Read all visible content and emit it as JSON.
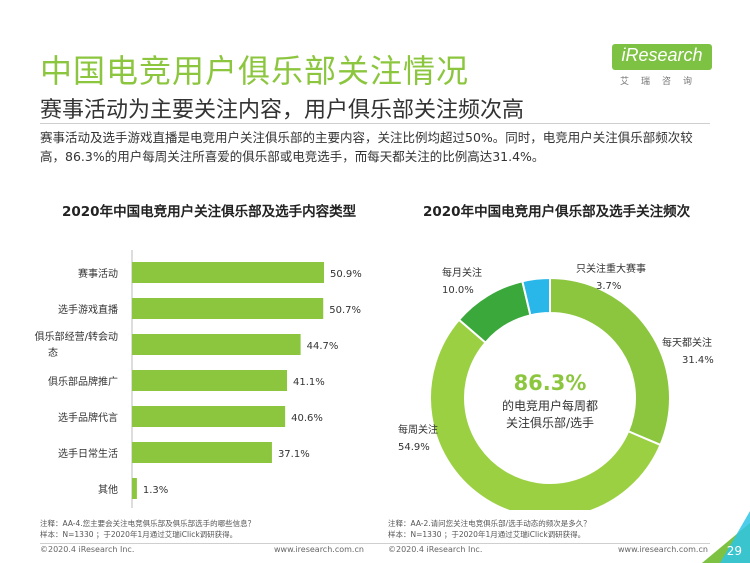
{
  "header": {
    "title": "中国电竞用户俱乐部关注情况",
    "subtitle": "赛事活动为主要关注内容，用户俱乐部关注频次高",
    "description": "赛事活动及选手游戏直播是电竞用户关注俱乐部的主要内容，关注比例均超过50%。同时，电竞用户关注俱乐部频次较高，86.3%的用户每周关注所喜爱的俱乐部或电竞选手，而每天都关注的比例高达31.4%。"
  },
  "logo": {
    "text": "iResearch",
    "cn": "艾瑞咨询"
  },
  "colors": {
    "accent": "#8cc63f",
    "bar": "#8cc63f",
    "pie_daily": "#8cc63f",
    "pie_weekly": "#9bd043",
    "pie_monthly": "#3aa83a",
    "pie_major": "#29b6e8"
  },
  "chart_data": [
    {
      "type": "bar",
      "orientation": "horizontal",
      "title": "2020年中国电竞用户关注俱乐部及选手内容类型",
      "categories": [
        "赛事活动",
        "选手游戏直播",
        "俱乐部经营/转会动态",
        "俱乐部品牌推广",
        "选手品牌代言",
        "选手日常生活",
        "其他"
      ],
      "values": [
        50.9,
        50.7,
        44.7,
        41.1,
        40.6,
        37.1,
        1.3
      ],
      "value_labels": [
        "50.9%",
        "50.7%",
        "44.7%",
        "41.1%",
        "40.6%",
        "37.1%",
        "1.3%"
      ],
      "unit": "%",
      "xlim": [
        0,
        60
      ]
    },
    {
      "type": "pie",
      "style": "donut",
      "title": "2020年中国电竞用户俱乐部及选手关注频次",
      "categories": [
        "每天都关注",
        "每周关注",
        "每月关注",
        "只关注重大赛事"
      ],
      "values": [
        31.4,
        54.9,
        10.0,
        3.7
      ],
      "value_labels": [
        "31.4%",
        "54.9%",
        "10.0%",
        "3.7%"
      ],
      "center_value": "86.3%",
      "center_text_line1": "的电竞用户每周都",
      "center_text_line2": "关注俱乐部/选手"
    }
  ],
  "notes": {
    "left_line1": "注释：AA-4.您主要会关注电竞俱乐部及俱乐部选手的哪些信息？",
    "left_line2": "样本：N=1330 ；于2020年1月通过艾瑞iClick调研获得。",
    "right_line1": "注释：AA-2.请问您关注电竞俱乐部/选手动态的频次是多久？",
    "right_line2": "样本：N=1330 ；于2020年1月通过艾瑞iClick调研获得。"
  },
  "footer": {
    "copyright": "©2020.4 iResearch Inc.",
    "website": "www.iresearch.com.cn",
    "page": "29"
  }
}
